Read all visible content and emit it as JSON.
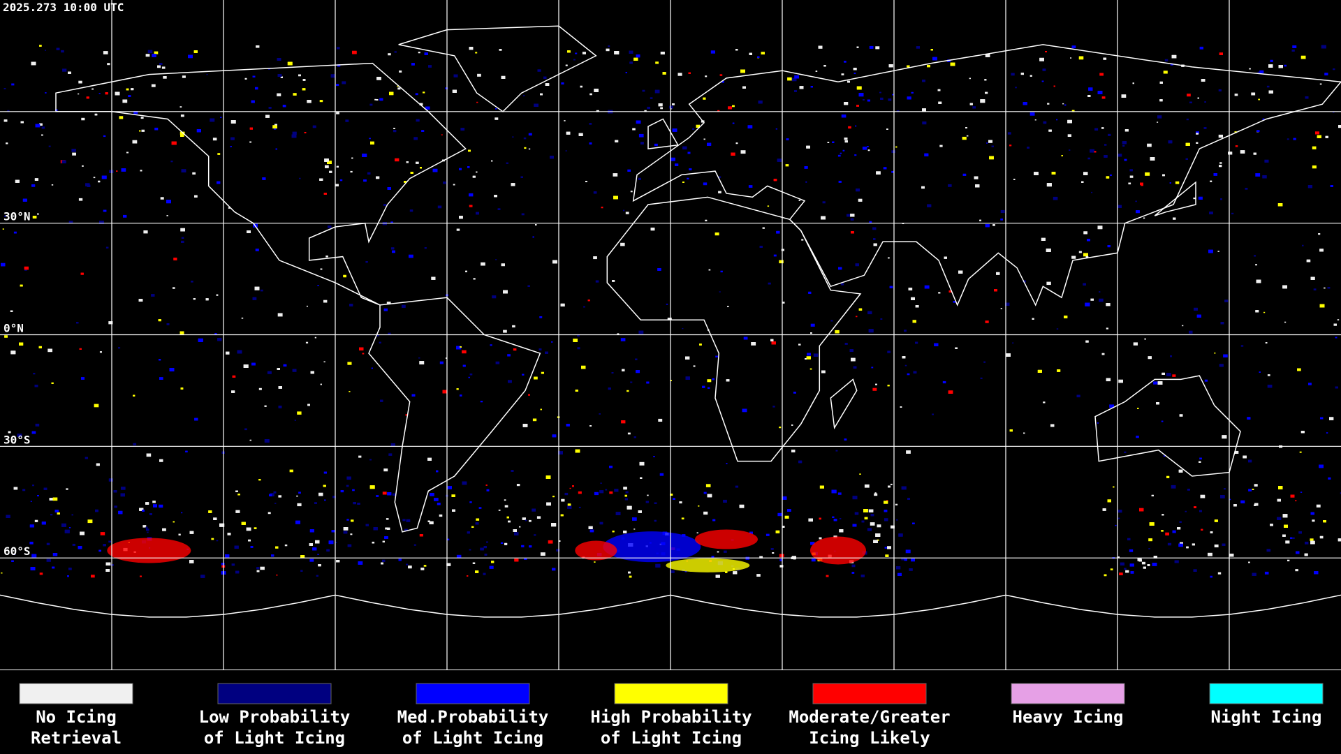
{
  "header": {
    "timestamp": "2025.273 10:00 UTC"
  },
  "map": {
    "latitude_labels": [
      "30°N",
      "0°N",
      "30°S",
      "60°S"
    ]
  },
  "legend": {
    "items": [
      {
        "color": "#f0f0f0",
        "label_lines": [
          "No Icing",
          "Retrieval"
        ]
      },
      {
        "color": "#000080",
        "label_lines": [
          "Low Probability",
          "of Light Icing"
        ]
      },
      {
        "color": "#0000ff",
        "label_lines": [
          "Med.Probability",
          "of Light Icing"
        ]
      },
      {
        "color": "#ffff00",
        "label_lines": [
          "High Probability",
          "of Light Icing"
        ]
      },
      {
        "color": "#ff0000",
        "label_lines": [
          "Moderate/Greater",
          "Icing Likely"
        ]
      },
      {
        "color": "#e6a0e6",
        "label_lines": [
          "Heavy Icing"
        ]
      },
      {
        "color": "#00ffff",
        "label_lines": [
          "Night Icing"
        ]
      }
    ]
  }
}
